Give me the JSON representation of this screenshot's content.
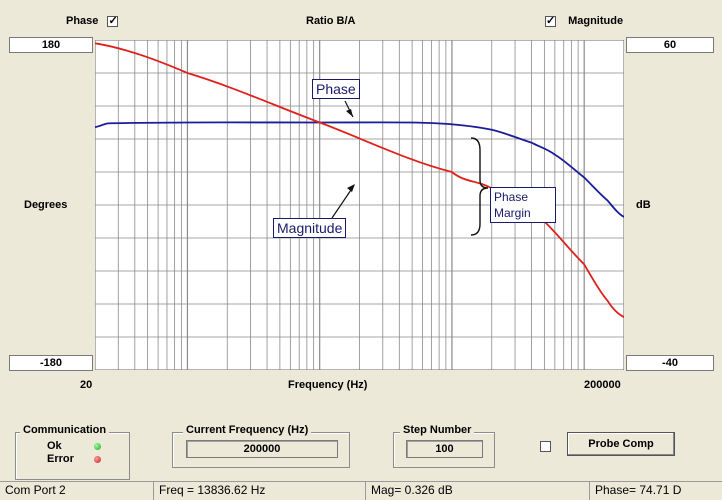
{
  "header": {
    "phase_label": "Phase",
    "phase_checked": true,
    "ratio_label": "Ratio B/A",
    "magnitude_label": "Magnitude",
    "magnitude_checked": true
  },
  "axes": {
    "left_top": "180",
    "left_bottom": "-180",
    "left_label": "Degrees",
    "right_top": "60",
    "right_bottom": "-40",
    "right_label": "dB",
    "x_min_label": "20",
    "x_max_label": "200000",
    "x_label": "Frequency (Hz)"
  },
  "annotations": {
    "phase": "Phase",
    "magnitude": "Magnitude",
    "phase_margin": "Phase Margin"
  },
  "colors": {
    "phase_curve": "#1c1c9a",
    "magnitude_curve": "#e0201a",
    "grid": "#8a8a8a",
    "led_ok": "#2aa02a",
    "led_error": "#c81e1e"
  },
  "chart_data": {
    "type": "line",
    "x_scale": "log",
    "x_range": [
      20,
      200000
    ],
    "xlabel": "Frequency (Hz)",
    "series": [
      {
        "name": "Phase",
        "axis": "left",
        "unit": "Degrees",
        "ylim": [
          -180,
          180
        ],
        "x": [
          20,
          25,
          100,
          1000,
          5000,
          10000,
          20000,
          40000,
          60000,
          100000,
          150000,
          200000
        ],
        "y": [
          85,
          89,
          90,
          90,
          90,
          88,
          82,
          68,
          55,
          30,
          5,
          -13
        ]
      },
      {
        "name": "Magnitude",
        "axis": "right",
        "unit": "dB",
        "ylim": [
          -40,
          60
        ],
        "x": [
          20,
          100,
          1000,
          10000,
          20000,
          50000,
          100000,
          150000,
          200000
        ],
        "y": [
          59,
          50,
          35,
          20,
          15,
          5,
          -8,
          -19,
          -24
        ]
      }
    ]
  },
  "communication": {
    "title": "Communication",
    "ok_label": "Ok",
    "error_label": "Error"
  },
  "current_frequency": {
    "title": "Current Frequency (Hz)",
    "value": "200000"
  },
  "step_number": {
    "title": "Step Number",
    "value": "100"
  },
  "probe_comp": {
    "label": "Probe Comp",
    "checked": false
  },
  "status_bar": {
    "port": "Com Port 2",
    "freq": "Freq = 13836.62 Hz",
    "mag": "Mag=   0.326 dB",
    "phase": "Phase=    74.71 D"
  }
}
